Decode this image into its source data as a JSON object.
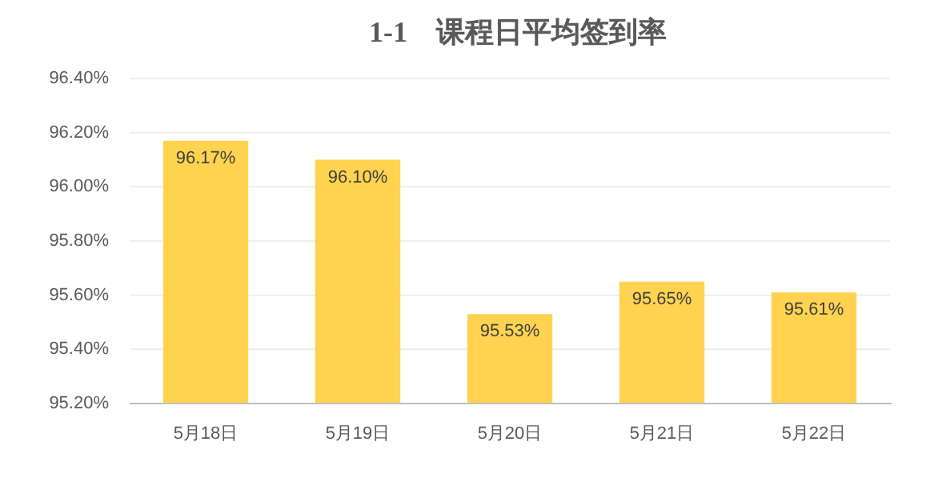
{
  "chart_data": {
    "type": "bar",
    "title": "1-1　课程日平均签到率",
    "categories": [
      "5月18日",
      "5月19日",
      "5月20日",
      "5月21日",
      "5月22日"
    ],
    "values": [
      96.17,
      96.1,
      95.53,
      95.65,
      95.61
    ],
    "value_labels": [
      "96.17%",
      "96.10%",
      "95.53%",
      "95.65%",
      "95.61%"
    ],
    "color": "#ffd34f",
    "ylim": [
      95.2,
      96.4
    ],
    "yticks": [
      {
        "value": 95.2,
        "label": "95.20%"
      },
      {
        "value": 95.4,
        "label": "95.40%"
      },
      {
        "value": 95.6,
        "label": "95.60%"
      },
      {
        "value": 95.8,
        "label": "95.80%"
      },
      {
        "value": 96.0,
        "label": "96.00%"
      },
      {
        "value": 96.2,
        "label": "96.20%"
      },
      {
        "value": 96.4,
        "label": "96.40%"
      }
    ],
    "grid": "y"
  }
}
